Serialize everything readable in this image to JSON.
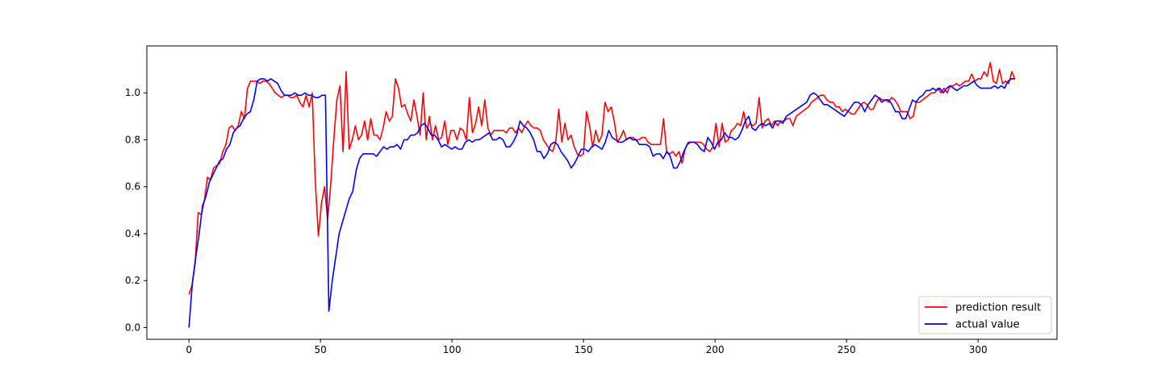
{
  "chart_data": {
    "type": "line",
    "title": "",
    "xlabel": "",
    "ylabel": "",
    "xlim": [
      -16,
      330
    ],
    "ylim": [
      -0.05,
      1.2
    ],
    "x_ticks": [
      0,
      50,
      100,
      150,
      200,
      250,
      300
    ],
    "y_ticks": [
      0.0,
      0.2,
      0.4,
      0.6,
      0.8,
      1.0
    ],
    "x_tick_labels": [
      "0",
      "50",
      "100",
      "150",
      "200",
      "250",
      "300"
    ],
    "y_tick_labels": [
      "0.0",
      "0.2",
      "0.4",
      "0.6",
      "0.8",
      "1.0"
    ],
    "grid": false,
    "legend_position": "lower-right",
    "series": [
      {
        "name": "prediction result",
        "color": "#ff0000",
        "values": [
          0.14,
          0.18,
          0.27,
          0.49,
          0.48,
          0.54,
          0.64,
          0.63,
          0.68,
          0.69,
          0.7,
          0.75,
          0.78,
          0.85,
          0.86,
          0.84,
          0.86,
          0.92,
          0.89,
          1.02,
          1.05,
          1.05,
          1.05,
          1.04,
          1.05,
          1.05,
          1.04,
          1.02,
          1.0,
          0.99,
          0.98,
          0.99,
          0.99,
          0.98,
          0.98,
          0.99,
          0.96,
          0.94,
          0.99,
          0.94,
          1.0,
          0.62,
          0.39,
          0.53,
          0.6,
          0.46,
          0.61,
          0.8,
          0.97,
          1.03,
          0.75,
          1.09,
          0.76,
          0.8,
          0.86,
          0.8,
          0.82,
          0.88,
          0.8,
          0.89,
          0.82,
          0.82,
          0.8,
          0.85,
          0.92,
          0.88,
          0.9,
          1.06,
          1.02,
          0.94,
          0.95,
          0.91,
          0.88,
          0.97,
          0.9,
          0.82,
          1.0,
          0.8,
          0.9,
          0.8,
          0.86,
          0.8,
          0.81,
          0.88,
          0.78,
          0.84,
          0.84,
          0.8,
          0.85,
          0.84,
          0.8,
          0.98,
          0.83,
          0.87,
          0.94,
          0.86,
          0.97,
          0.85,
          0.82,
          0.84,
          0.84,
          0.84,
          0.84,
          0.83,
          0.85,
          0.85,
          0.83,
          0.85,
          0.83,
          0.86,
          0.88,
          0.86,
          0.85,
          0.85,
          0.84,
          0.8,
          0.78,
          0.76,
          0.75,
          0.79,
          0.93,
          0.79,
          0.87,
          0.8,
          0.82,
          0.77,
          0.74,
          0.73,
          0.74,
          0.92,
          0.86,
          0.77,
          0.84,
          0.79,
          0.82,
          0.96,
          0.92,
          0.94,
          0.88,
          0.79,
          0.81,
          0.84,
          0.8,
          0.81,
          0.81,
          0.8,
          0.8,
          0.81,
          0.81,
          0.79,
          0.78,
          0.78,
          0.78,
          0.78,
          0.89,
          0.75,
          0.74,
          0.75,
          0.73,
          0.75,
          0.7,
          0.76,
          0.79,
          0.79,
          0.79,
          0.79,
          0.79,
          0.78,
          0.76,
          0.75,
          0.77,
          0.87,
          0.77,
          0.87,
          0.79,
          0.8,
          0.84,
          0.85,
          0.87,
          0.86,
          0.92,
          0.85,
          0.87,
          0.86,
          0.87,
          0.98,
          0.85,
          0.88,
          0.89,
          0.86,
          0.88,
          0.86,
          0.88,
          0.88,
          0.89,
          0.89,
          0.86,
          0.9,
          0.91,
          0.92,
          0.93,
          0.94,
          0.96,
          0.97,
          0.98,
          0.99,
          0.99,
          0.97,
          0.96,
          0.96,
          0.94,
          0.94,
          0.92,
          0.93,
          0.92,
          0.91,
          0.91,
          0.93,
          0.95,
          0.96,
          0.95,
          0.93,
          0.93,
          0.96,
          0.98,
          0.97,
          0.97,
          0.96,
          0.98,
          0.97,
          0.95,
          0.92,
          0.92,
          0.92,
          0.89,
          0.9,
          0.96,
          0.96,
          0.97,
          0.98,
          0.99,
          1.0,
          1.0,
          1.02,
          1.0,
          1.02,
          1.0,
          1.03,
          1.03,
          1.04,
          1.03,
          1.04,
          1.05,
          1.05,
          1.08,
          1.05,
          1.06,
          1.06,
          1.09,
          1.07,
          1.13,
          1.05,
          1.04,
          1.1,
          1.04,
          1.05,
          1.04,
          1.09,
          1.06
        ]
      },
      {
        "name": "actual value",
        "color": "#0000ff",
        "values": [
          0.0,
          0.19,
          0.3,
          0.4,
          0.52,
          0.56,
          0.62,
          0.65,
          0.68,
          0.71,
          0.72,
          0.76,
          0.78,
          0.83,
          0.85,
          0.86,
          0.89,
          0.91,
          0.92,
          0.97,
          1.05,
          1.06,
          1.06,
          1.05,
          1.06,
          1.05,
          1.04,
          1.01,
          0.99,
          0.99,
          0.99,
          1.0,
          0.99,
          0.99,
          1.0,
          0.99,
          0.99,
          0.98,
          0.98,
          0.99,
          0.99,
          0.07,
          0.2,
          0.3,
          0.4,
          0.45,
          0.5,
          0.55,
          0.58,
          0.67,
          0.72,
          0.74,
          0.74,
          0.74,
          0.74,
          0.73,
          0.75,
          0.77,
          0.76,
          0.77,
          0.77,
          0.78,
          0.76,
          0.8,
          0.8,
          0.82,
          0.82,
          0.83,
          0.86,
          0.87,
          0.85,
          0.82,
          0.82,
          0.8,
          0.77,
          0.78,
          0.77,
          0.76,
          0.77,
          0.76,
          0.76,
          0.79,
          0.8,
          0.79,
          0.8,
          0.8,
          0.81,
          0.82,
          0.83,
          0.8,
          0.8,
          0.81,
          0.8,
          0.77,
          0.77,
          0.79,
          0.82,
          0.88,
          0.86,
          0.85,
          0.83,
          0.8,
          0.75,
          0.75,
          0.72,
          0.74,
          0.78,
          0.79,
          0.78,
          0.75,
          0.73,
          0.71,
          0.68,
          0.7,
          0.73,
          0.76,
          0.76,
          0.75,
          0.77,
          0.78,
          0.77,
          0.76,
          0.79,
          0.84,
          0.81,
          0.8,
          0.79,
          0.79,
          0.8,
          0.81,
          0.8,
          0.8,
          0.78,
          0.78,
          0.78,
          0.77,
          0.73,
          0.74,
          0.74,
          0.72,
          0.75,
          0.73,
          0.68,
          0.68,
          0.71,
          0.75,
          0.78,
          0.79,
          0.79,
          0.78,
          0.76,
          0.75,
          0.81,
          0.79,
          0.76,
          0.79,
          0.8,
          0.83,
          0.81,
          0.81,
          0.8,
          0.81,
          0.84,
          0.88,
          0.9,
          0.85,
          0.84,
          0.86,
          0.87,
          0.86,
          0.87,
          0.85,
          0.88,
          0.88,
          0.87,
          0.9,
          0.91,
          0.92,
          0.93,
          0.94,
          0.95,
          0.96,
          0.99,
          1.0,
          0.99,
          0.97,
          0.95,
          0.95,
          0.94,
          0.93,
          0.92,
          0.91,
          0.9,
          0.92,
          0.94,
          0.96,
          0.96,
          0.95,
          0.92,
          0.95,
          0.97,
          0.99,
          0.98,
          0.96,
          0.97,
          0.97,
          0.95,
          0.92,
          0.92,
          0.89,
          0.89,
          0.93,
          0.97,
          0.96,
          0.98,
          0.99,
          1.01,
          1.01,
          1.02,
          1.01,
          1.02,
          1.0,
          1.02,
          1.03,
          1.02,
          1.01,
          1.02,
          1.03,
          1.03,
          1.04,
          1.05,
          1.03,
          1.02,
          1.02,
          1.02,
          1.02,
          1.03,
          1.02,
          1.03,
          1.02,
          1.05,
          1.06,
          1.06
        ]
      }
    ]
  }
}
